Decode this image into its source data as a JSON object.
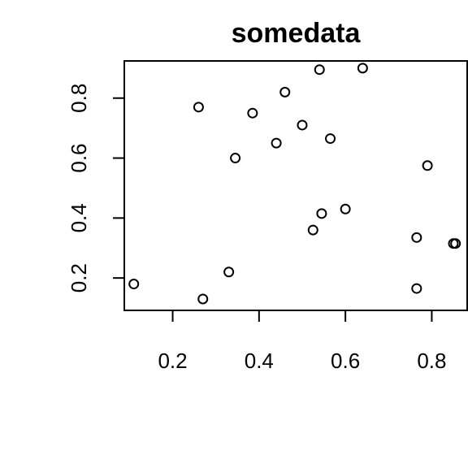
{
  "chart_data": {
    "type": "scatter",
    "title": "somedata",
    "xlabel": "",
    "ylabel": "",
    "xlim": [
      0.088,
      0.882
    ],
    "ylim": [
      0.092,
      0.924
    ],
    "x_ticks": [
      0.2,
      0.4,
      0.6,
      0.8
    ],
    "y_ticks": [
      0.2,
      0.4,
      0.6,
      0.8
    ],
    "x_tick_labels": [
      "0.2",
      "0.4",
      "0.6",
      "0.8"
    ],
    "y_tick_labels": [
      "0.2",
      "0.4",
      "0.6",
      "0.8"
    ],
    "grid": false,
    "legend": "none",
    "marker": "open-circle",
    "color": "#000000",
    "points": [
      {
        "x": 0.11,
        "y": 0.18
      },
      {
        "x": 0.26,
        "y": 0.77
      },
      {
        "x": 0.27,
        "y": 0.13
      },
      {
        "x": 0.33,
        "y": 0.22
      },
      {
        "x": 0.345,
        "y": 0.6
      },
      {
        "x": 0.385,
        "y": 0.75
      },
      {
        "x": 0.44,
        "y": 0.65
      },
      {
        "x": 0.46,
        "y": 0.82
      },
      {
        "x": 0.5,
        "y": 0.71
      },
      {
        "x": 0.525,
        "y": 0.36
      },
      {
        "x": 0.54,
        "y": 0.895
      },
      {
        "x": 0.545,
        "y": 0.415
      },
      {
        "x": 0.565,
        "y": 0.665
      },
      {
        "x": 0.6,
        "y": 0.43
      },
      {
        "x": 0.64,
        "y": 0.9
      },
      {
        "x": 0.765,
        "y": 0.335
      },
      {
        "x": 0.765,
        "y": 0.165
      },
      {
        "x": 0.79,
        "y": 0.575
      },
      {
        "x": 0.85,
        "y": 0.315
      },
      {
        "x": 0.855,
        "y": 0.315
      }
    ]
  }
}
